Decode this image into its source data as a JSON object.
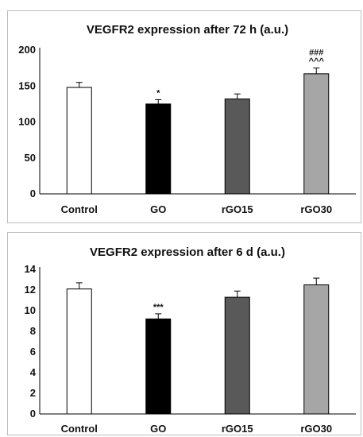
{
  "chart_data": [
    {
      "type": "bar",
      "title": "VEGFR2 expression after 72 h (a.u.)",
      "categories": [
        "Control",
        "GO",
        "rGO15",
        "rGO30"
      ],
      "values": [
        148,
        125,
        132,
        167
      ],
      "errors": [
        7,
        6,
        7,
        8
      ],
      "colors": [
        "#ffffff",
        "#000000",
        "#595959",
        "#a6a6a6"
      ],
      "annotations": [
        [],
        [
          "*"
        ],
        [],
        [
          "###",
          "^^^"
        ]
      ],
      "ylim": [
        0,
        200
      ],
      "yticks": [
        0,
        50,
        100,
        150,
        200
      ],
      "grid": false
    },
    {
      "type": "bar",
      "title": "VEGFR2 expression after 6 d (a.u.)",
      "categories": [
        "Control",
        "GO",
        "rGO15",
        "rGO30"
      ],
      "values": [
        12.1,
        9.2,
        11.3,
        12.5
      ],
      "errors": [
        0.6,
        0.5,
        0.6,
        0.65
      ],
      "colors": [
        "#ffffff",
        "#000000",
        "#595959",
        "#a6a6a6"
      ],
      "annotations": [
        [],
        [
          "***"
        ],
        [],
        []
      ],
      "ylim": [
        0,
        14
      ],
      "yticks": [
        0,
        2,
        4,
        6,
        8,
        10,
        12,
        14
      ],
      "grid": false
    }
  ]
}
